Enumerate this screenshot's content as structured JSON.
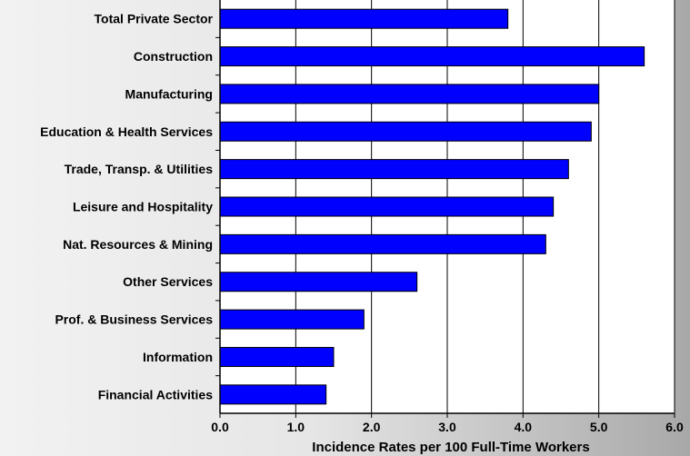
{
  "chart_data": {
    "type": "bar",
    "orientation": "horizontal",
    "categories": [
      "Total Private Sector",
      "Construction",
      "Manufacturing",
      "Education & Health Services",
      "Trade, Transp. & Utilities",
      "Leisure and Hospitality",
      "Nat. Resources & Mining",
      "Other Services",
      "Prof. & Business Services",
      "Information",
      "Financial Activities"
    ],
    "values": [
      3.8,
      5.6,
      5.0,
      4.9,
      4.6,
      4.4,
      4.3,
      2.6,
      1.9,
      1.5,
      1.4
    ],
    "xlabel": "Incidence Rates per 100 Full-Time Workers",
    "ylabel": "",
    "xlim": [
      0,
      6
    ],
    "xticks": [
      "0.0",
      "1.0",
      "2.0",
      "3.0",
      "4.0",
      "5.0",
      "6.0"
    ],
    "grid": "vertical",
    "bar_color": "#0000ff",
    "bar_outline_color": "#000000",
    "plot_background": "#ffffff"
  }
}
